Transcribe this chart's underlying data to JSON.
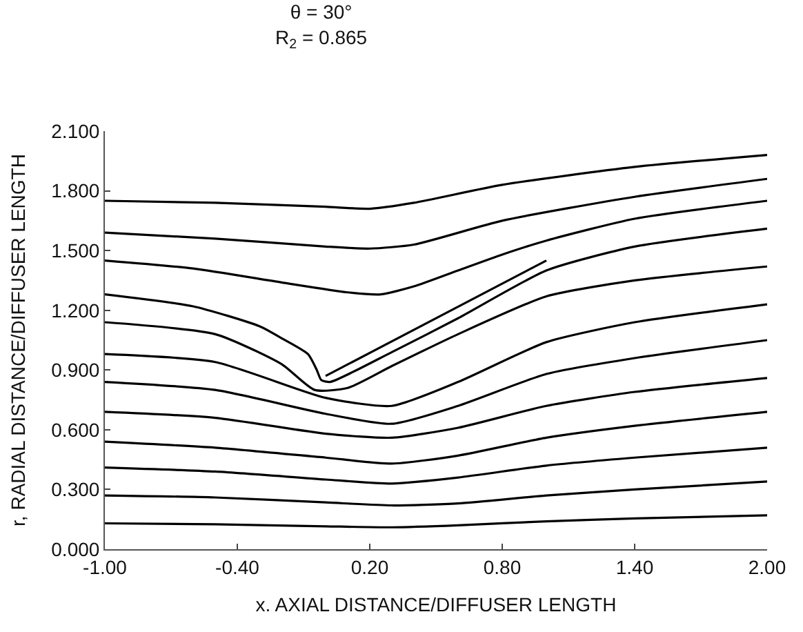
{
  "chart_data": {
    "type": "line",
    "title": "θ = 30°",
    "subtitle": "R$_{2}$ = 0.865",
    "xlabel": "x. AXIAL DISTANCE/DIFFUSER LENGTH",
    "ylabel": "r, RADIAL DISTANCE/DIFFUSER LENGTH",
    "xlim": [
      -1.0,
      2.0
    ],
    "ylim": [
      0.0,
      2.1
    ],
    "xticks": [
      {
        "value": -1.0,
        "label": "-1.00"
      },
      {
        "value": -0.4,
        "label": "-0.40"
      },
      {
        "value": 0.2,
        "label": "0.20"
      },
      {
        "value": 0.8,
        "label": "0.80"
      },
      {
        "value": 1.4,
        "label": "1.40"
      },
      {
        "value": 2.0,
        "label": "2.00"
      }
    ],
    "yticks": [
      {
        "value": 0.0,
        "label": "0.000"
      },
      {
        "value": 0.3,
        "label": "0.300"
      },
      {
        "value": 0.6,
        "label": "0.600"
      },
      {
        "value": 0.9,
        "label": "0.900"
      },
      {
        "value": 1.2,
        "label": "1.200"
      },
      {
        "value": 1.5,
        "label": "1.500"
      },
      {
        "value": 1.8,
        "label": "1.800"
      },
      {
        "value": 2.1,
        "label": "2.100"
      }
    ],
    "marker": "none",
    "line_style": "solid",
    "series": [
      {
        "color": "#000000",
        "x": [
          -1.0,
          -0.5,
          0.0,
          0.3,
          0.6,
          1.0,
          1.4,
          2.0
        ],
        "values": [
          0.13,
          0.125,
          0.115,
          0.11,
          0.12,
          0.14,
          0.155,
          0.17
        ]
      },
      {
        "color": "#000000",
        "x": [
          -1.0,
          -0.5,
          0.0,
          0.3,
          0.6,
          1.0,
          1.4,
          2.0
        ],
        "values": [
          0.27,
          0.26,
          0.235,
          0.22,
          0.23,
          0.27,
          0.3,
          0.34
        ]
      },
      {
        "color": "#000000",
        "x": [
          -1.0,
          -0.5,
          0.0,
          0.3,
          0.6,
          1.0,
          1.4,
          2.0
        ],
        "values": [
          0.41,
          0.39,
          0.35,
          0.33,
          0.36,
          0.42,
          0.46,
          0.51
        ]
      },
      {
        "color": "#000000",
        "x": [
          -1.0,
          -0.5,
          0.0,
          0.3,
          0.6,
          1.0,
          1.4,
          2.0
        ],
        "values": [
          0.54,
          0.51,
          0.46,
          0.43,
          0.47,
          0.56,
          0.62,
          0.69
        ]
      },
      {
        "color": "#000000",
        "x": [
          -1.0,
          -0.5,
          0.0,
          0.3,
          0.6,
          1.0,
          1.4,
          2.0
        ],
        "values": [
          0.69,
          0.66,
          0.58,
          0.56,
          0.61,
          0.72,
          0.79,
          0.86
        ]
      },
      {
        "color": "#000000",
        "x": [
          -1.0,
          -0.5,
          0.0,
          0.3,
          0.6,
          1.0,
          1.4,
          2.0
        ],
        "values": [
          0.84,
          0.8,
          0.68,
          0.63,
          0.72,
          0.88,
          0.96,
          1.05
        ]
      },
      {
        "color": "#000000",
        "x": [
          -1.0,
          -0.5,
          0.0,
          0.3,
          0.6,
          1.0,
          1.4,
          2.0
        ],
        "values": [
          0.98,
          0.94,
          0.76,
          0.72,
          0.84,
          1.04,
          1.14,
          1.23
        ]
      },
      {
        "color": "#000000",
        "x": [
          -1.0,
          -0.5,
          -0.2,
          -0.05,
          0.1,
          0.3,
          0.6,
          1.0,
          1.4,
          2.0
        ],
        "values": [
          1.14,
          1.08,
          0.93,
          0.8,
          0.81,
          0.92,
          1.08,
          1.27,
          1.35,
          1.42
        ]
      },
      {
        "color": "#000000",
        "x": [
          -1.0,
          -0.6,
          -0.3,
          -0.2,
          -0.08,
          -0.04,
          -0.02,
          0.02,
          0.3,
          0.6,
          1.0,
          1.4,
          2.0
        ],
        "values": [
          1.28,
          1.22,
          1.12,
          1.06,
          0.98,
          0.9,
          0.85,
          0.84,
          0.99,
          1.16,
          1.4,
          1.52,
          1.61
        ]
      },
      {
        "color": "#000000",
        "x": [
          -1.0,
          -0.6,
          -0.2,
          0.1,
          0.25,
          0.4,
          0.6,
          0.8,
          1.0,
          1.4,
          2.0
        ],
        "values": [
          1.45,
          1.41,
          1.34,
          1.29,
          1.28,
          1.32,
          1.4,
          1.48,
          1.55,
          1.66,
          1.75
        ]
      },
      {
        "color": "#000000",
        "x": [
          -1.0,
          -0.5,
          0.0,
          0.2,
          0.4,
          0.8,
          1.4,
          2.0
        ],
        "values": [
          1.59,
          1.56,
          1.52,
          1.51,
          1.53,
          1.65,
          1.77,
          1.86
        ]
      },
      {
        "color": "#000000",
        "x": [
          -1.0,
          -0.5,
          0.0,
          0.2,
          0.4,
          0.8,
          1.4,
          2.0
        ],
        "values": [
          1.75,
          1.74,
          1.72,
          1.71,
          1.74,
          1.83,
          1.92,
          1.98
        ]
      },
      {
        "color": "#000000",
        "x": [
          0.0,
          1.0
        ],
        "values": [
          0.87,
          1.45
        ]
      }
    ]
  }
}
